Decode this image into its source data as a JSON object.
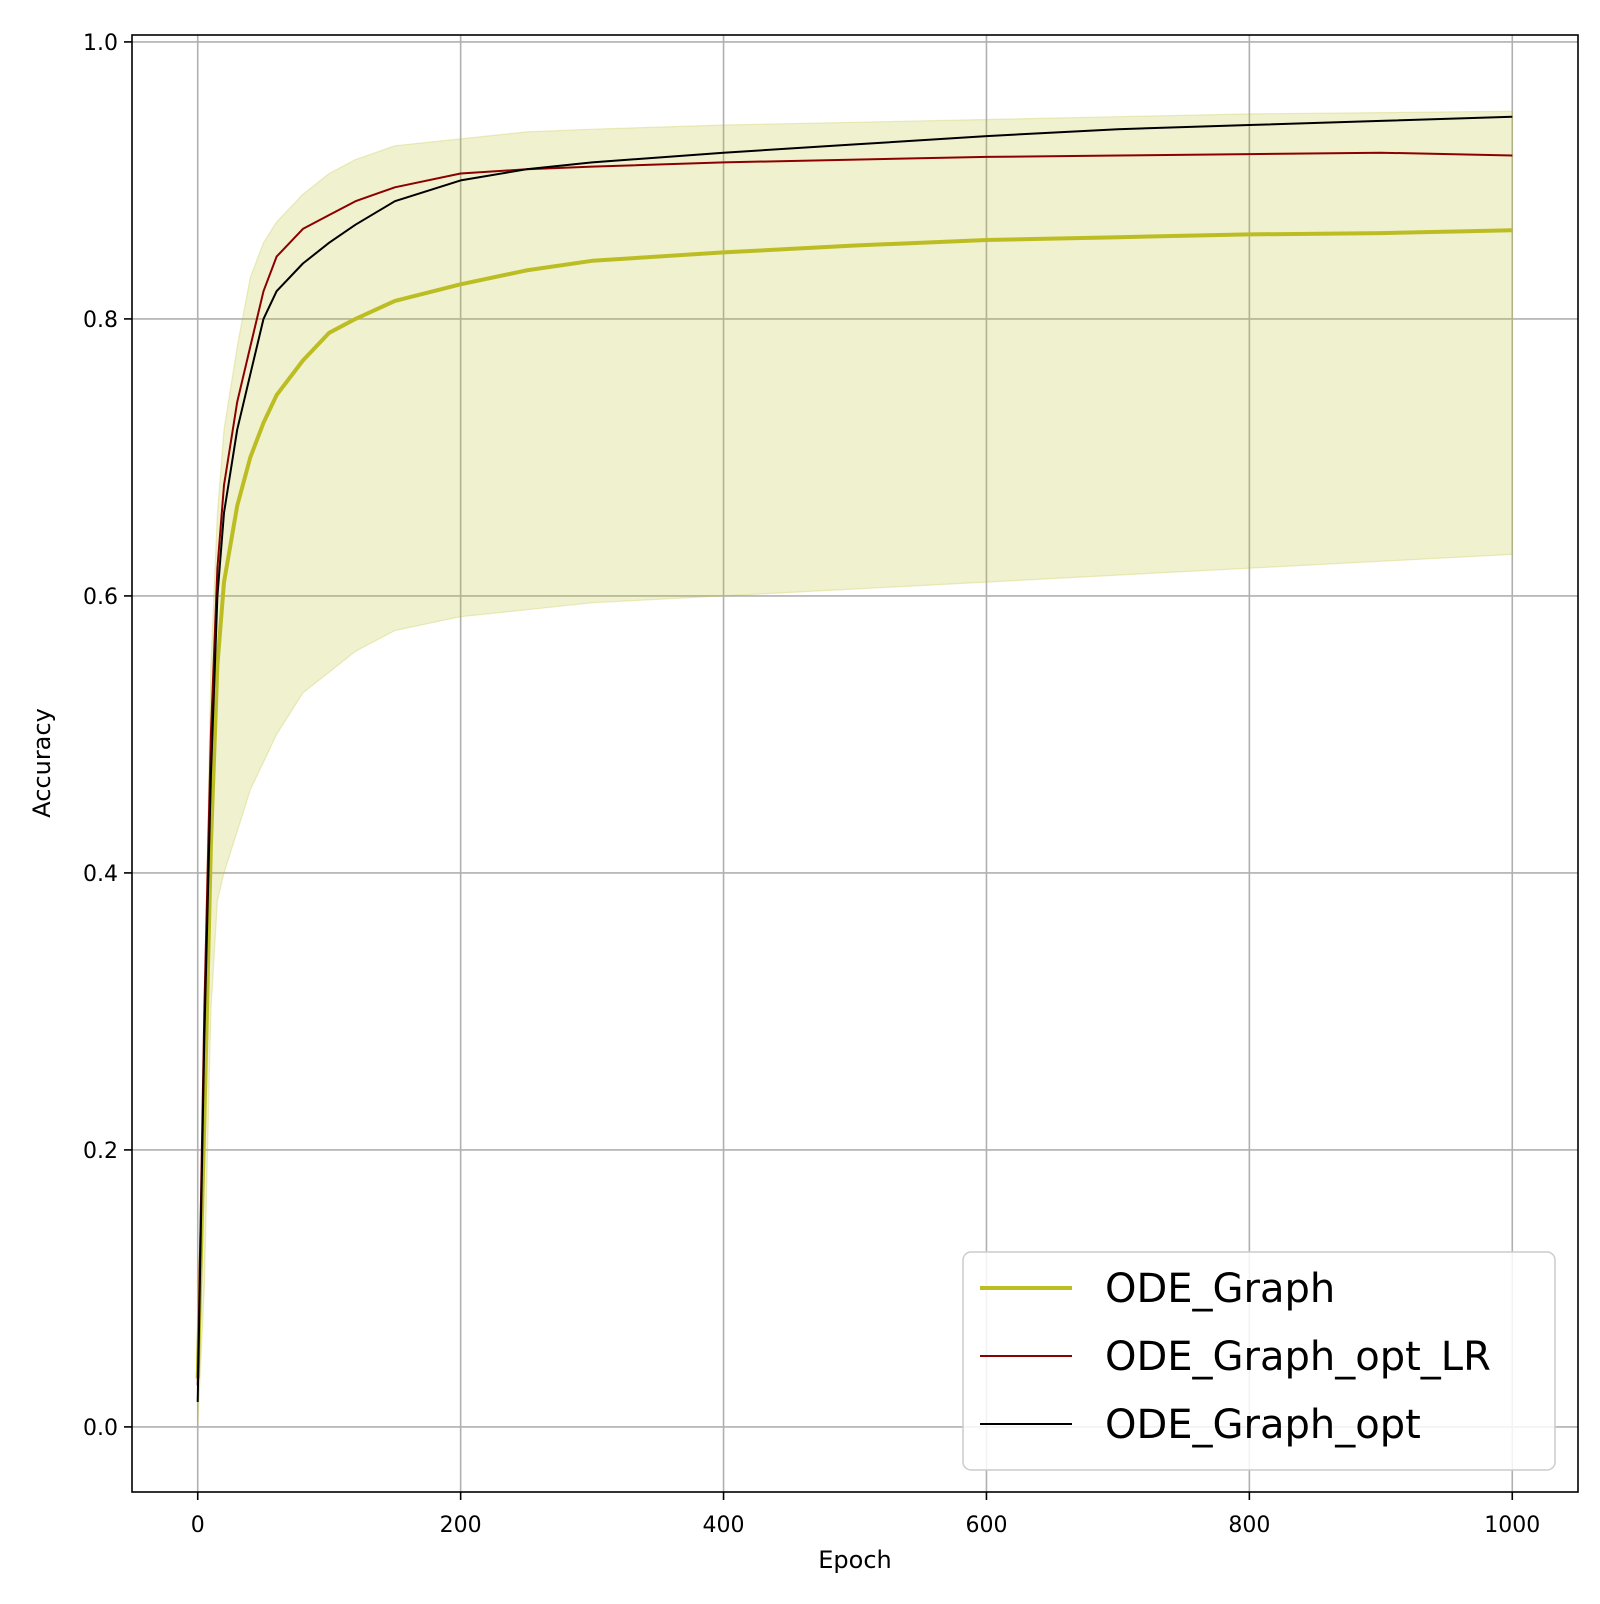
{
  "chart_data": {
    "type": "line",
    "title": "",
    "xlabel": "Epoch",
    "ylabel": "Accuracy",
    "xlim": [
      -50,
      1050
    ],
    "ylim": [
      -0.047,
      1.005
    ],
    "xticks": [
      0,
      200,
      400,
      600,
      800,
      1000
    ],
    "xtick_labels": [
      "0",
      "200",
      "400",
      "600",
      "800",
      "1000"
    ],
    "yticks": [
      0.0,
      0.2,
      0.4,
      0.6,
      0.8,
      1.0
    ],
    "ytick_labels": [
      "0.0",
      "0.2",
      "0.4",
      "0.6",
      "0.8",
      "1.0"
    ],
    "grid": true,
    "legend_position": "lower-right",
    "series": [
      {
        "name": "ODE_Graph",
        "color": "#bcbd22",
        "x": [
          0,
          5,
          10,
          15,
          20,
          30,
          40,
          50,
          60,
          80,
          100,
          120,
          150,
          200,
          250,
          300,
          400,
          500,
          600,
          700,
          800,
          900,
          1000
        ],
        "values": [
          0.035,
          0.22,
          0.42,
          0.55,
          0.61,
          0.665,
          0.7,
          0.725,
          0.745,
          0.77,
          0.79,
          0.8,
          0.813,
          0.825,
          0.835,
          0.842,
          0.848,
          0.853,
          0.857,
          0.859,
          0.861,
          0.862,
          0.864
        ],
        "band_upper": [
          0.04,
          0.3,
          0.55,
          0.66,
          0.72,
          0.78,
          0.83,
          0.855,
          0.87,
          0.89,
          0.905,
          0.915,
          0.925,
          0.93,
          0.935,
          0.937,
          0.94,
          0.942,
          0.944,
          0.946,
          0.948,
          0.949,
          0.95
        ],
        "band_lower": [
          0.0,
          0.1,
          0.3,
          0.38,
          0.4,
          0.43,
          0.46,
          0.48,
          0.5,
          0.53,
          0.545,
          0.56,
          0.575,
          0.585,
          0.59,
          0.595,
          0.6,
          0.605,
          0.61,
          0.615,
          0.62,
          0.625,
          0.63
        ]
      },
      {
        "name": "ODE_Graph_opt_LR",
        "color": "#8b0000",
        "x": [
          0,
          5,
          10,
          15,
          20,
          30,
          40,
          50,
          60,
          80,
          100,
          120,
          150,
          200,
          250,
          300,
          400,
          500,
          600,
          700,
          800,
          900,
          1000
        ],
        "values": [
          0.03,
          0.3,
          0.5,
          0.62,
          0.68,
          0.74,
          0.78,
          0.82,
          0.845,
          0.865,
          0.875,
          0.885,
          0.895,
          0.905,
          0.908,
          0.91,
          0.913,
          0.915,
          0.917,
          0.918,
          0.919,
          0.92,
          0.918
        ]
      },
      {
        "name": "ODE_Graph_opt",
        "color": "#000000",
        "x": [
          0,
          5,
          10,
          15,
          20,
          30,
          40,
          50,
          60,
          80,
          100,
          120,
          150,
          200,
          250,
          300,
          400,
          500,
          600,
          700,
          800,
          900,
          1000
        ],
        "values": [
          0.018,
          0.28,
          0.47,
          0.6,
          0.66,
          0.72,
          0.76,
          0.8,
          0.82,
          0.84,
          0.855,
          0.868,
          0.885,
          0.9,
          0.908,
          0.913,
          0.92,
          0.926,
          0.932,
          0.937,
          0.94,
          0.943,
          0.946
        ]
      }
    ]
  }
}
